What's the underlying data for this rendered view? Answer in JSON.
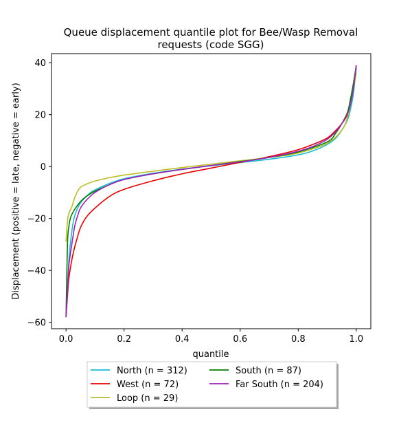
{
  "chart_data": {
    "type": "line",
    "title_line1": "Queue displacement quantile plot for Bee/Wasp Removal",
    "title_line2": "requests (code SGG)",
    "xlabel": "quantile",
    "ylabel": "Displacement (positive = late, negative = early)",
    "xlim": [
      -0.05,
      1.05
    ],
    "ylim": [
      -62.5,
      43.5
    ],
    "xticks": [
      0.0,
      0.2,
      0.4,
      0.6,
      0.8,
      1.0
    ],
    "xtick_labels": [
      "0.0",
      "0.2",
      "0.4",
      "0.6",
      "0.8",
      "1.0"
    ],
    "yticks": [
      -60,
      -40,
      -20,
      0,
      20,
      40
    ],
    "ytick_labels": [
      "−60",
      "−40",
      "−20",
      "0",
      "20",
      "40"
    ],
    "grid": false,
    "legend_position": "below",
    "series": [
      {
        "name": "North (n = 312)",
        "color": "#17becf",
        "x": [
          0.0,
          0.005,
          0.01,
          0.02,
          0.03,
          0.05,
          0.08,
          0.1,
          0.15,
          0.2,
          0.3,
          0.4,
          0.5,
          0.6,
          0.7,
          0.8,
          0.85,
          0.9,
          0.93,
          0.95,
          0.97,
          0.98,
          0.99,
          1.0
        ],
        "y": [
          -58,
          -48,
          -36,
          -25,
          -19,
          -14,
          -10.5,
          -9,
          -6.5,
          -4.7,
          -2.6,
          -1.0,
          0.3,
          1.5,
          2.8,
          4.5,
          6.0,
          8.5,
          11,
          14,
          18,
          22,
          28,
          38
        ]
      },
      {
        "name": "West (n = 72)",
        "color": "#e60000",
        "x": [
          0.0,
          0.005,
          0.01,
          0.02,
          0.03,
          0.04,
          0.05,
          0.07,
          0.1,
          0.15,
          0.2,
          0.3,
          0.4,
          0.5,
          0.6,
          0.7,
          0.8,
          0.85,
          0.9,
          0.93,
          0.95,
          0.97,
          0.98,
          0.99,
          1.0
        ],
        "y": [
          -58,
          -50,
          -43,
          -36,
          -31,
          -27,
          -23.5,
          -19.5,
          -16,
          -11.5,
          -8.8,
          -5.5,
          -2.8,
          -0.6,
          1.6,
          3.8,
          6.5,
          8.5,
          11,
          14,
          16.5,
          20,
          24,
          30,
          39
        ]
      },
      {
        "name": "Loop (n = 29)",
        "color": "#bcbd22",
        "x": [
          0.0,
          0.005,
          0.01,
          0.02,
          0.03,
          0.04,
          0.05,
          0.07,
          0.1,
          0.15,
          0.2,
          0.3,
          0.4,
          0.5,
          0.6,
          0.7,
          0.8,
          0.9,
          0.95,
          0.97,
          0.98,
          0.99,
          1.0
        ],
        "y": [
          -29,
          -21,
          -18,
          -15.5,
          -12,
          -9.5,
          -8,
          -6.8,
          -5.6,
          -4.3,
          -3.3,
          -1.8,
          -0.4,
          0.9,
          2.2,
          3.5,
          5.2,
          9,
          14,
          19,
          24,
          30,
          36
        ]
      },
      {
        "name": "South (n = 87)",
        "color": "#008000",
        "x": [
          0.0,
          0.005,
          0.01,
          0.015,
          0.02,
          0.03,
          0.05,
          0.07,
          0.1,
          0.15,
          0.2,
          0.3,
          0.4,
          0.5,
          0.6,
          0.7,
          0.8,
          0.9,
          0.93,
          0.95,
          0.97,
          0.98,
          0.99,
          1.0
        ],
        "y": [
          -58,
          -30,
          -23,
          -20,
          -18.5,
          -16.5,
          -13.5,
          -11.5,
          -9.5,
          -7,
          -5,
          -2.8,
          -1.1,
          0.4,
          1.9,
          3.5,
          5.6,
          9.5,
          13,
          16.5,
          21,
          26,
          32,
          39
        ]
      },
      {
        "name": "Far South (n = 204)",
        "color": "#a020c0",
        "x": [
          0.0,
          0.005,
          0.01,
          0.02,
          0.03,
          0.04,
          0.05,
          0.07,
          0.1,
          0.15,
          0.2,
          0.3,
          0.4,
          0.5,
          0.6,
          0.7,
          0.8,
          0.85,
          0.9,
          0.93,
          0.95,
          0.97,
          0.98,
          0.99,
          1.0
        ],
        "y": [
          -58,
          -48,
          -38,
          -30,
          -23,
          -19,
          -16,
          -13,
          -10,
          -7,
          -5,
          -2.8,
          -1.1,
          0.4,
          1.8,
          3.5,
          5.9,
          7.7,
          10.5,
          13.5,
          16.5,
          20.5,
          24,
          30,
          39
        ]
      }
    ]
  }
}
